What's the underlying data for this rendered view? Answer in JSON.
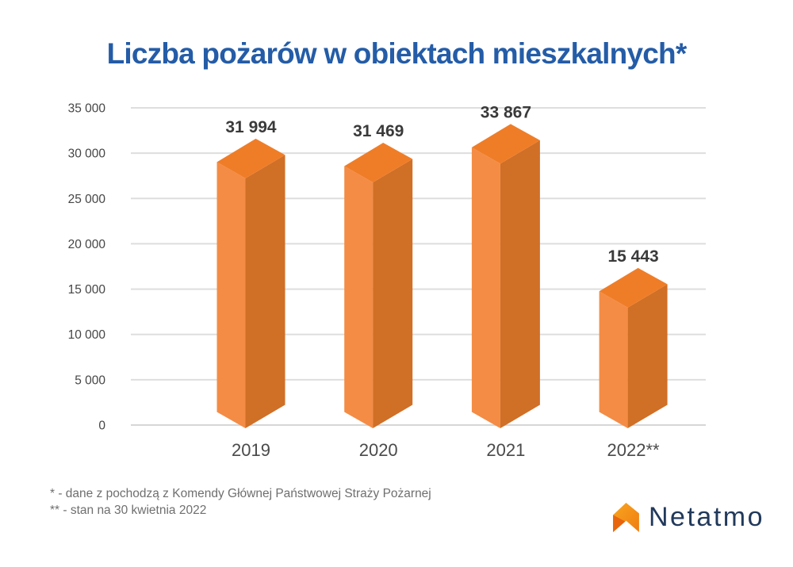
{
  "title": "Liczba pożarów w obiektach mieszkalnych*",
  "chart_data": {
    "type": "bar",
    "style": "3d-prism-bars",
    "title": "Liczba pożarów w obiektach mieszkalnych*",
    "categories": [
      "2019",
      "2020",
      "2021",
      "2022**"
    ],
    "values": [
      31994,
      31469,
      33867,
      15443
    ],
    "value_labels": [
      "31 994",
      "31 469",
      "33 867",
      "15 443"
    ],
    "xlabel": "",
    "ylabel": "",
    "ylim": [
      0,
      35000
    ],
    "ytick_step": 5000,
    "ytick_labels": [
      "0",
      "5 000",
      "10 000",
      "15 000",
      "20 000",
      "25 000",
      "30 000",
      "35 000"
    ],
    "grid": true,
    "legend": false,
    "bar_colors": {
      "top": "#EF7D28",
      "left": "#F48C45",
      "right": "#D06F26"
    }
  },
  "footnotes": {
    "line1": "* - dane z pochodzą z Komendy Głównej Państwowej Straży Pożarnej",
    "line2": "** - stan na 30 kwietnia 2022"
  },
  "logo": {
    "text": "Netatmo",
    "icon": "netatmo-arrow-icon",
    "icon_colors": {
      "main_top": "#F9A61F",
      "main_bottom": "#EF7C12",
      "fold": "#E8650E"
    },
    "text_color": "#21395B"
  },
  "colors": {
    "background": "#FFFFFF",
    "title": "#245CA7",
    "axis_text": "#454545",
    "category_text": "#4A4A4A",
    "value_text": "#3A3A3A",
    "gridline": "#DEDEDE",
    "footnote": "#6F6F6F"
  }
}
